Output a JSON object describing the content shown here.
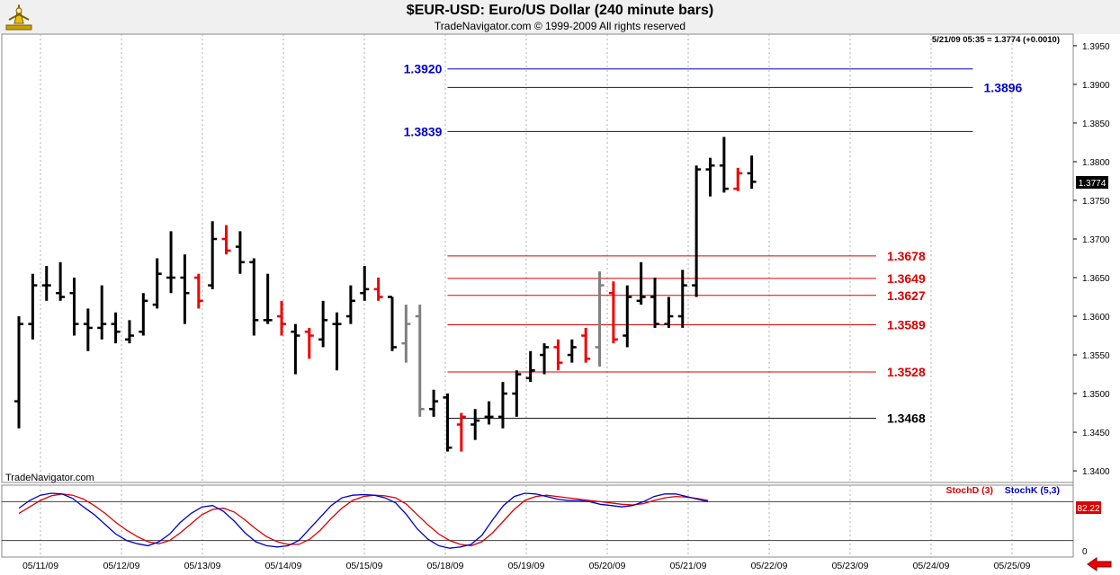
{
  "header": {
    "title": "$EUR-USD:  Euro/US Dollar  (240 minute bars)",
    "subtitle": "TradeNavigator.com © 1999-2009 All rights reserved"
  },
  "watermark": "TradeNavigator.com",
  "last_quote": "5/21/09 05:35 = 1.3774 (+0.0010)",
  "last_price_tag": "1.3774",
  "stoch": {
    "d_label": "StochD (3)",
    "k_label": "StochK (5,3)",
    "value_tag": "82.22",
    "zero_label": "0",
    "colors": {
      "d": "#dd0000",
      "k": "#0000cc"
    }
  },
  "chart_data": {
    "type": "ohlc",
    "x_tick_labels": [
      "05/11/09",
      "05/12/09",
      "05/13/09",
      "05/14/09",
      "05/15/09",
      "05/18/09",
      "05/19/09",
      "05/20/09",
      "05/21/09",
      "05/22/09",
      "05/23/09",
      "05/24/09",
      "05/25/09"
    ],
    "ylim": [
      1.3385,
      1.3965
    ],
    "y_ticks": [
      "1.3400",
      "1.3450",
      "1.3500",
      "1.3550",
      "1.3600",
      "1.3650",
      "1.3700",
      "1.3750",
      "1.3800",
      "1.3850",
      "1.3900",
      "1.3950"
    ],
    "grid": true,
    "colors": {
      "up": "#000000",
      "down": "#ee0000",
      "neutral": "#808080"
    },
    "bars": [
      {
        "o": 1.349,
        "h": 1.36,
        "l": 1.3455,
        "c": 1.359,
        "color": "up"
      },
      {
        "o": 1.359,
        "h": 1.3655,
        "l": 1.357,
        "c": 1.364,
        "color": "up"
      },
      {
        "o": 1.364,
        "h": 1.3665,
        "l": 1.362,
        "c": 1.364,
        "color": "up"
      },
      {
        "o": 1.363,
        "h": 1.367,
        "l": 1.362,
        "c": 1.3625,
        "color": "up"
      },
      {
        "o": 1.363,
        "h": 1.365,
        "l": 1.3575,
        "c": 1.359,
        "color": "up"
      },
      {
        "o": 1.359,
        "h": 1.361,
        "l": 1.3555,
        "c": 1.3585,
        "color": "up"
      },
      {
        "o": 1.3585,
        "h": 1.364,
        "l": 1.357,
        "c": 1.359,
        "color": "up"
      },
      {
        "o": 1.359,
        "h": 1.3605,
        "l": 1.3565,
        "c": 1.358,
        "color": "up"
      },
      {
        "o": 1.357,
        "h": 1.3595,
        "l": 1.3565,
        "c": 1.3575,
        "color": "up"
      },
      {
        "o": 1.358,
        "h": 1.363,
        "l": 1.3575,
        "c": 1.362,
        "color": "up"
      },
      {
        "o": 1.3615,
        "h": 1.3675,
        "l": 1.361,
        "c": 1.3655,
        "color": "up"
      },
      {
        "o": 1.365,
        "h": 1.371,
        "l": 1.363,
        "c": 1.365,
        "color": "up"
      },
      {
        "o": 1.365,
        "h": 1.368,
        "l": 1.359,
        "c": 1.363,
        "color": "up"
      },
      {
        "o": 1.365,
        "h": 1.3655,
        "l": 1.361,
        "c": 1.362,
        "color": "down"
      },
      {
        "o": 1.364,
        "h": 1.3723,
        "l": 1.3635,
        "c": 1.37,
        "color": "up"
      },
      {
        "o": 1.37,
        "h": 1.3718,
        "l": 1.368,
        "c": 1.3685,
        "color": "down"
      },
      {
        "o": 1.369,
        "h": 1.371,
        "l": 1.3655,
        "c": 1.367,
        "color": "up"
      },
      {
        "o": 1.367,
        "h": 1.3675,
        "l": 1.3575,
        "c": 1.3595,
        "color": "up"
      },
      {
        "o": 1.3595,
        "h": 1.3655,
        "l": 1.359,
        "c": 1.3595,
        "color": "up"
      },
      {
        "o": 1.36,
        "h": 1.362,
        "l": 1.3575,
        "c": 1.359,
        "color": "down"
      },
      {
        "o": 1.358,
        "h": 1.359,
        "l": 1.3525,
        "c": 1.3575,
        "color": "up"
      },
      {
        "o": 1.358,
        "h": 1.3585,
        "l": 1.3545,
        "c": 1.3575,
        "color": "down"
      },
      {
        "o": 1.357,
        "h": 1.362,
        "l": 1.356,
        "c": 1.3595,
        "color": "up"
      },
      {
        "o": 1.359,
        "h": 1.3605,
        "l": 1.353,
        "c": 1.359,
        "color": "up"
      },
      {
        "o": 1.36,
        "h": 1.364,
        "l": 1.359,
        "c": 1.362,
        "color": "up"
      },
      {
        "o": 1.363,
        "h": 1.3665,
        "l": 1.362,
        "c": 1.3635,
        "color": "up"
      },
      {
        "o": 1.3635,
        "h": 1.365,
        "l": 1.362,
        "c": 1.3625,
        "color": "down"
      },
      {
        "o": 1.3625,
        "h": 1.3625,
        "l": 1.3555,
        "c": 1.356,
        "color": "up"
      },
      {
        "o": 1.3565,
        "h": 1.3615,
        "l": 1.354,
        "c": 1.359,
        "color": "neutral"
      },
      {
        "o": 1.36,
        "h": 1.3615,
        "l": 1.347,
        "c": 1.348,
        "color": "neutral"
      },
      {
        "o": 1.348,
        "h": 1.3505,
        "l": 1.347,
        "c": 1.349,
        "color": "up"
      },
      {
        "o": 1.3495,
        "h": 1.35,
        "l": 1.3425,
        "c": 1.343,
        "color": "up"
      },
      {
        "o": 1.346,
        "h": 1.3475,
        "l": 1.3425,
        "c": 1.347,
        "color": "down"
      },
      {
        "o": 1.346,
        "h": 1.348,
        "l": 1.344,
        "c": 1.3465,
        "color": "up"
      },
      {
        "o": 1.347,
        "h": 1.349,
        "l": 1.346,
        "c": 1.347,
        "color": "up"
      },
      {
        "o": 1.347,
        "h": 1.3515,
        "l": 1.3455,
        "c": 1.35,
        "color": "up"
      },
      {
        "o": 1.35,
        "h": 1.353,
        "l": 1.347,
        "c": 1.3525,
        "color": "up"
      },
      {
        "o": 1.352,
        "h": 1.3555,
        "l": 1.3515,
        "c": 1.353,
        "color": "up"
      },
      {
        "o": 1.355,
        "h": 1.3565,
        "l": 1.3525,
        "c": 1.356,
        "color": "up"
      },
      {
        "o": 1.356,
        "h": 1.357,
        "l": 1.353,
        "c": 1.354,
        "color": "down"
      },
      {
        "o": 1.355,
        "h": 1.357,
        "l": 1.354,
        "c": 1.356,
        "color": "up"
      },
      {
        "o": 1.3575,
        "h": 1.3585,
        "l": 1.354,
        "c": 1.3545,
        "color": "down"
      },
      {
        "o": 1.356,
        "h": 1.3658,
        "l": 1.3535,
        "c": 1.364,
        "color": "neutral"
      },
      {
        "o": 1.363,
        "h": 1.3645,
        "l": 1.3565,
        "c": 1.357,
        "color": "down"
      },
      {
        "o": 1.3575,
        "h": 1.364,
        "l": 1.356,
        "c": 1.3625,
        "color": "up"
      },
      {
        "o": 1.362,
        "h": 1.367,
        "l": 1.3615,
        "c": 1.3625,
        "color": "up"
      },
      {
        "o": 1.3625,
        "h": 1.365,
        "l": 1.3585,
        "c": 1.359,
        "color": "up"
      },
      {
        "o": 1.359,
        "h": 1.3625,
        "l": 1.3585,
        "c": 1.36,
        "color": "up"
      },
      {
        "o": 1.36,
        "h": 1.366,
        "l": 1.3585,
        "c": 1.364,
        "color": "up"
      },
      {
        "o": 1.364,
        "h": 1.3795,
        "l": 1.3625,
        "c": 1.379,
        "color": "up"
      },
      {
        "o": 1.379,
        "h": 1.3805,
        "l": 1.3755,
        "c": 1.3795,
        "color": "up"
      },
      {
        "o": 1.3795,
        "h": 1.3832,
        "l": 1.376,
        "c": 1.3765,
        "color": "up"
      },
      {
        "o": 1.3765,
        "h": 1.3792,
        "l": 1.3762,
        "c": 1.3785,
        "color": "down"
      },
      {
        "o": 1.3785,
        "h": 1.3808,
        "l": 1.3765,
        "c": 1.3774,
        "color": "up"
      }
    ],
    "levels": [
      {
        "value": 1.392,
        "label": "1.3920",
        "color": "#0000cc",
        "line_from_bar": 31,
        "line_to_bar": 69,
        "label_side": "left"
      },
      {
        "value": 1.3896,
        "label": "1.3896",
        "color": "#0000cc",
        "line_from_bar": 31,
        "line_to_bar": 69,
        "label_side": "right"
      },
      {
        "value": 1.3839,
        "label": "1.3839",
        "color": "#0000cc",
        "line_from_bar": 31,
        "line_to_bar": 69,
        "label_side": "left"
      },
      {
        "value": 1.3678,
        "label": "1.3678",
        "color": "#dd0000",
        "line_from_bar": 31,
        "line_to_bar": 62,
        "label_side": "right"
      },
      {
        "value": 1.3649,
        "label": "1.3649",
        "color": "#dd0000",
        "line_from_bar": 31,
        "line_to_bar": 62,
        "label_side": "right"
      },
      {
        "value": 1.3627,
        "label": "1.3627",
        "color": "#dd0000",
        "line_from_bar": 31,
        "line_to_bar": 62,
        "label_side": "right"
      },
      {
        "value": 1.3589,
        "label": "1.3589",
        "color": "#dd0000",
        "line_from_bar": 31,
        "line_to_bar": 62,
        "label_side": "right"
      },
      {
        "value": 1.3528,
        "label": "1.3528",
        "color": "#dd0000",
        "line_from_bar": 31,
        "line_to_bar": 62,
        "label_side": "right"
      },
      {
        "value": 1.3468,
        "label": "1.3468",
        "color": "#000000",
        "line_from_bar": 31,
        "line_to_bar": 62,
        "label_side": "right"
      }
    ],
    "stoch_ylim": [
      0,
      100
    ],
    "stoch_levels": [
      80,
      20
    ],
    "stoch_k": [
      70,
      82,
      90,
      93,
      92,
      85,
      72,
      60,
      45,
      30,
      20,
      15,
      12,
      18,
      30,
      48,
      62,
      72,
      74,
      65,
      50,
      32,
      18,
      12,
      10,
      12,
      20,
      38,
      56,
      74,
      86,
      90,
      91,
      90,
      86,
      78,
      60,
      38,
      22,
      12,
      8,
      10,
      14,
      28,
      52,
      74,
      88,
      93,
      92,
      88,
      84,
      82,
      82,
      80,
      76,
      74,
      72,
      74,
      80,
      88,
      92,
      92,
      88,
      84,
      80
    ],
    "stoch_d": [
      62,
      72,
      82,
      89,
      92,
      90,
      84,
      74,
      62,
      48,
      36,
      26,
      18,
      15,
      20,
      32,
      46,
      60,
      68,
      70,
      64,
      52,
      38,
      26,
      18,
      14,
      14,
      22,
      36,
      54,
      70,
      82,
      88,
      90,
      89,
      86,
      76,
      60,
      44,
      30,
      20,
      14,
      12,
      18,
      32,
      50,
      68,
      82,
      88,
      90,
      88,
      86,
      84,
      82,
      80,
      78,
      76,
      75,
      77,
      82,
      86,
      88,
      87,
      85,
      82
    ]
  }
}
